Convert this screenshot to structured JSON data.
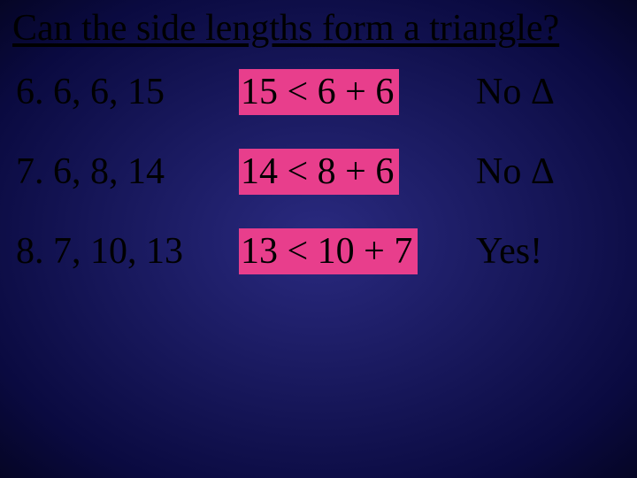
{
  "slide": {
    "background": {
      "center_color": "#2a2a80",
      "outer_color": "#050525"
    },
    "text_color": "#000000",
    "highlight_color": "#e83e8c",
    "font_family": "Times New Roman",
    "title": "Can the side lengths form a triangle?",
    "title_fontsize": 42,
    "row_fontsize": 42,
    "rows": [
      {
        "problem": "6.  6, 6, 15",
        "inequality": "15 < 6 + 6",
        "answer": "No Δ"
      },
      {
        "problem": "7.  6, 8, 14",
        "inequality": "14 < 8 + 6",
        "answer": "No Δ"
      },
      {
        "problem": "8.  7, 10, 13",
        "inequality": "13 < 10 + 7",
        "answer": "Yes!"
      }
    ]
  }
}
